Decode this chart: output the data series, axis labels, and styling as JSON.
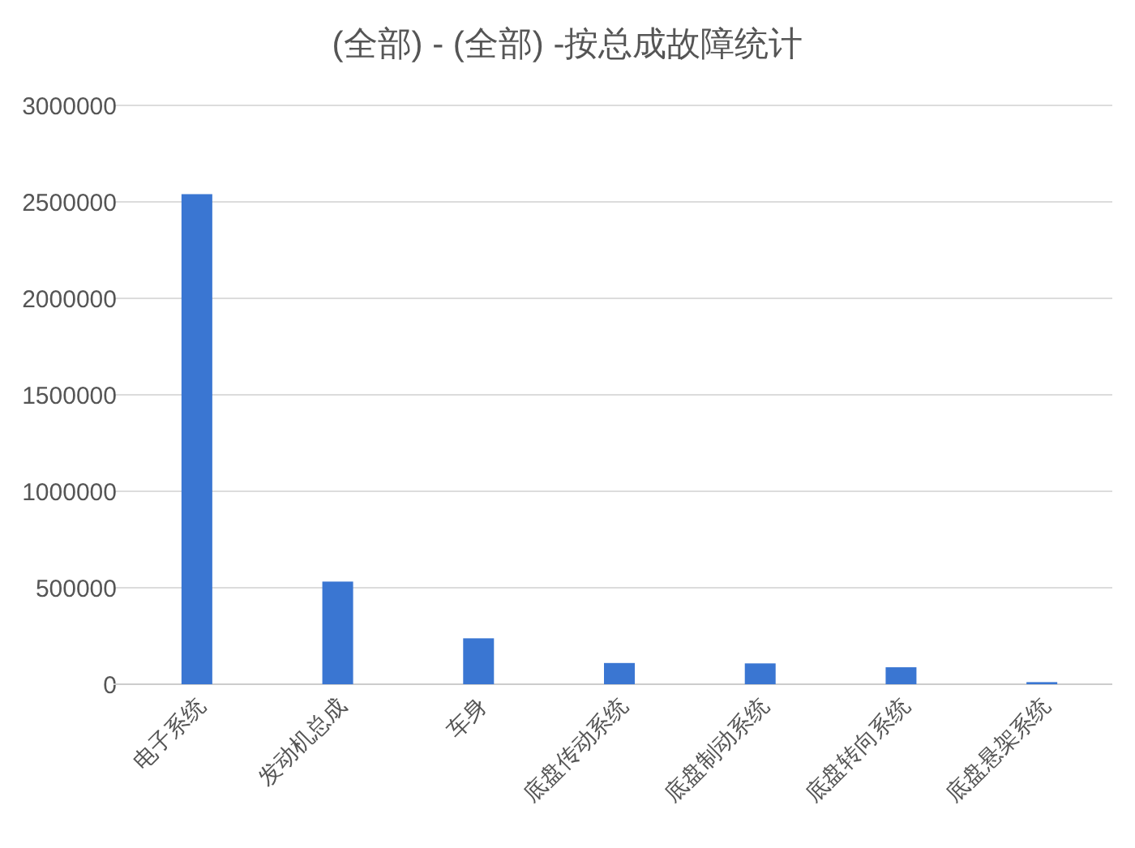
{
  "chart_data": {
    "type": "bar",
    "title": "(全部) - (全部) -按总成故障统计",
    "categories": [
      "电子系统",
      "发动机总成",
      "车身",
      "底盘传动系统",
      "底盘制动系统",
      "底盘转向系统",
      "底盘悬架系统"
    ],
    "values": [
      2540000,
      532000,
      238000,
      110000,
      108000,
      88000,
      11000
    ],
    "color": "#3a76d2",
    "ylim": [
      0,
      3000000
    ],
    "yticks": [
      0,
      500000,
      1000000,
      1500000,
      2000000,
      2500000,
      3000000
    ],
    "grid": "y"
  }
}
